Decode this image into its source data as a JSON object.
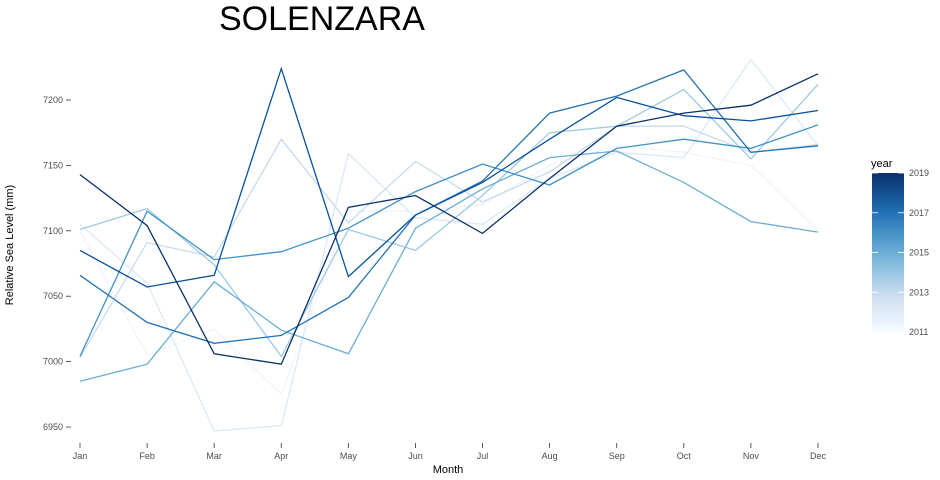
{
  "chart_data": {
    "type": "line",
    "title": "SOLENZARA",
    "xlabel": "Month",
    "ylabel": "Relative Sea Level (mm)",
    "categories": [
      "Jan",
      "Feb",
      "Mar",
      "Apr",
      "May",
      "Jun",
      "Jul",
      "Aug",
      "Sep",
      "Oct",
      "Nov",
      "Dec"
    ],
    "yticks": [
      6950,
      7000,
      7050,
      7100,
      7150,
      7200
    ],
    "ylim": [
      6940,
      7235
    ],
    "grid": false,
    "legend": {
      "title": "year",
      "placement": "right",
      "type": "colorbar",
      "min": 2011,
      "max": 2019,
      "ticks": [
        2011,
        2013,
        2015,
        2017,
        2019
      ],
      "low_color": "#f7fbff",
      "high_color": "#08306b"
    },
    "series": [
      {
        "year": 2011,
        "color": "#eef5fc",
        "values": [
          7100,
          7005,
          7025,
          6975,
          7115,
          7115,
          7120,
          7150,
          7165,
          7160,
          7150,
          7100
        ]
      },
      {
        "year": 2012,
        "color": "#dbe9f6",
        "values": [
          7105,
          7060,
          6947,
          6951,
          7159,
          7110,
          7105,
          7140,
          7160,
          7156,
          7231,
          7165
        ]
      },
      {
        "year": 2013,
        "color": "#c6dbef",
        "values": [
          7003,
          7091,
          7080,
          7170,
          7106,
          7153,
          7122,
          7145,
          7180,
          7180,
          7160,
          7166
        ]
      },
      {
        "year": 2014,
        "color": "#9ecae1",
        "values": [
          7101,
          7117,
          7074,
          7004,
          7101,
          7085,
          7127,
          7175,
          7180,
          7208,
          7155,
          7212
        ]
      },
      {
        "year": 2015,
        "color": "#6baed6",
        "values": [
          6985,
          6998,
          7061,
          7024,
          7006,
          7102,
          7132,
          7156,
          7161,
          7137,
          7107,
          7099
        ]
      },
      {
        "year": 2016,
        "color": "#4292c6",
        "values": [
          7004,
          7115,
          7078,
          7084,
          7102,
          7130,
          7151,
          7135,
          7163,
          7170,
          7163,
          7181
        ]
      },
      {
        "year": 2017,
        "color": "#2171b5",
        "values": [
          7066,
          7030,
          7014,
          7020,
          7049,
          7112,
          7138,
          7190,
          7203,
          7223,
          7160,
          7165
        ]
      },
      {
        "year": 2018,
        "color": "#08519c",
        "values": [
          7085,
          7057,
          7066,
          7224,
          7065,
          7112,
          7137,
          7170,
          7202,
          7188,
          7184,
          7192
        ]
      },
      {
        "year": 2019,
        "color": "#08306b",
        "values": [
          7143,
          7104,
          7006,
          6998,
          7118,
          7127,
          7098,
          7140,
          7180,
          7190,
          7196,
          7220
        ]
      }
    ]
  }
}
